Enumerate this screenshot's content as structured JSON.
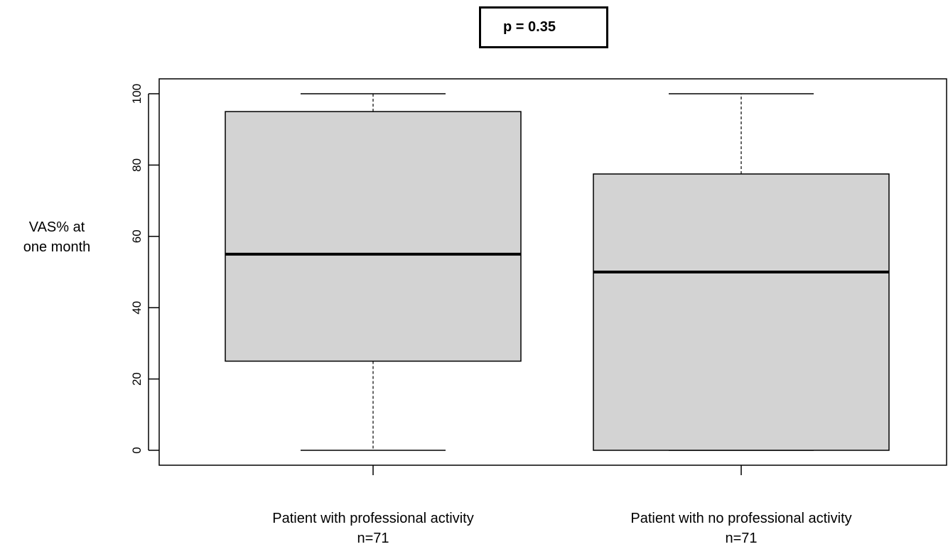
{
  "annotation": "p = 0.35",
  "chart_data": {
    "type": "box",
    "title": "",
    "ylabel": [
      "VAS% at",
      "one month"
    ],
    "ylim": [
      -4,
      104
    ],
    "yticks": [
      0,
      20,
      40,
      60,
      80,
      100
    ],
    "grid": false,
    "categories": [
      "Patient with professional activity",
      "Patient with no professional activity"
    ],
    "counts": [
      "n=71",
      "n=71"
    ],
    "boxes": [
      {
        "min": 0,
        "q1": 25,
        "median": 55,
        "q3": 95,
        "max": 100
      },
      {
        "min": 0,
        "q1": 0,
        "median": 50,
        "q3": 77.5,
        "max": 100
      }
    ],
    "box_fill": "#d3d3d3"
  }
}
